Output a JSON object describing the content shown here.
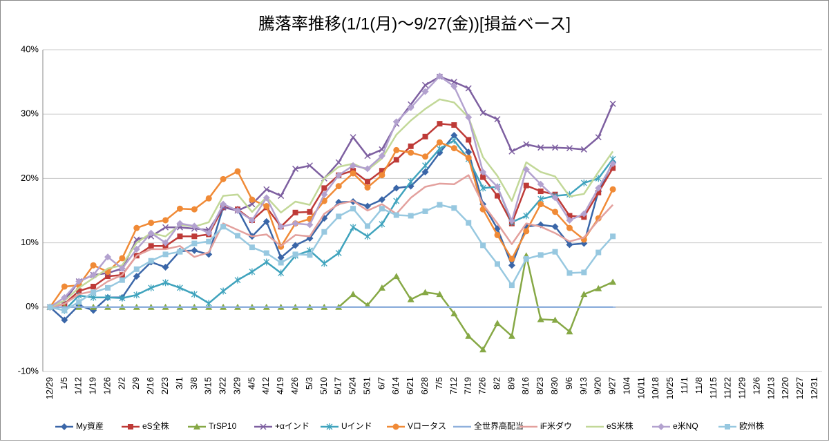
{
  "chart_data": {
    "type": "line",
    "title": "騰落率推移(1/1(月)～9/27(金))[損益ベース]",
    "categories": [
      "12/29",
      "1/5",
      "1/12",
      "1/19",
      "1/26",
      "2/2",
      "2/9",
      "2/16",
      "2/23",
      "3/1",
      "3/8",
      "3/15",
      "3/22",
      "3/29",
      "4/5",
      "4/12",
      "4/19",
      "4/26",
      "5/3",
      "5/10",
      "5/17",
      "5/24",
      "5/31",
      "6/7",
      "6/14",
      "6/21",
      "6/28",
      "7/5",
      "7/12",
      "7/19",
      "7/26",
      "8/2",
      "8/9",
      "8/16",
      "8/23",
      "8/30",
      "9/6",
      "9/13",
      "9/20",
      "9/27",
      "10/4",
      "10/11",
      "10/18",
      "10/25",
      "11/1",
      "11/8",
      "11/15",
      "11/22",
      "11/29",
      "12/6",
      "12/13",
      "12/20",
      "12/27",
      "12/31"
    ],
    "ylim": [
      -10,
      40
    ],
    "yticks": [
      {
        "value": -10,
        "label": "-10%"
      },
      {
        "value": 0,
        "label": "0%"
      },
      {
        "value": 10,
        "label": "10%"
      },
      {
        "value": 20,
        "label": "20%"
      },
      {
        "value": 30,
        "label": "30%"
      },
      {
        "value": 40,
        "label": "40%"
      }
    ],
    "grid": true,
    "legend": "bottom",
    "series": [
      {
        "name": "My資産",
        "color": "#3a66a8",
        "marker": "diamond",
        "values": [
          0,
          -2,
          0.3,
          -0.5,
          1.5,
          1.5,
          4.8,
          7,
          6.2,
          8.7,
          8.8,
          8.2,
          15.5,
          15.2,
          11,
          13.3,
          7.7,
          9.6,
          10.7,
          13.8,
          16.3,
          16.4,
          15.7,
          16.7,
          18.5,
          18.8,
          21,
          24,
          26.7,
          24.1,
          16,
          12.2,
          6.5,
          12.5,
          12.8,
          12.5,
          9.7,
          9.9,
          18,
          22.5,
          null,
          null,
          null,
          null,
          null,
          null,
          null,
          null,
          null,
          null,
          null,
          null,
          null,
          null
        ]
      },
      {
        "name": "eS全株",
        "color": "#be3a37",
        "marker": "square",
        "values": [
          0,
          0.5,
          2.5,
          3.2,
          4.8,
          5,
          8,
          9.5,
          9.5,
          11,
          11,
          11.3,
          15.5,
          15.2,
          13.5,
          15.5,
          12.5,
          14.7,
          14.8,
          18.5,
          20.5,
          21.2,
          19.5,
          21.2,
          22.9,
          25,
          26.5,
          28.5,
          28.3,
          26,
          20.2,
          17.3,
          13,
          18.9,
          18,
          17.5,
          14.2,
          14,
          17.8,
          21.6,
          null,
          null,
          null,
          null,
          null,
          null,
          null,
          null,
          null,
          null,
          null,
          null,
          null,
          null
        ]
      },
      {
        "name": "TrSP10",
        "color": "#86a845",
        "marker": "triangle",
        "values": [
          0,
          0,
          0,
          0,
          0,
          0,
          0,
          0,
          0,
          0,
          0,
          0,
          0,
          0,
          0,
          0,
          0,
          0,
          0,
          0,
          0,
          2,
          0.3,
          3,
          4.8,
          1.2,
          2.3,
          2,
          -1,
          -4.5,
          -6.6,
          -2.5,
          -4.5,
          8,
          -1.9,
          -2,
          -3.8,
          2,
          2.9,
          3.9,
          null,
          null,
          null,
          null,
          null,
          null,
          null,
          null,
          null,
          null,
          null,
          null,
          null,
          null
        ]
      },
      {
        "name": "+αインド",
        "color": "#7d5fa0",
        "marker": "x",
        "values": [
          0,
          1,
          4,
          5,
          5.3,
          6,
          10.5,
          11,
          12.4,
          12.4,
          12.2,
          12,
          15.5,
          15,
          16,
          18.3,
          17.3,
          21.5,
          22,
          20,
          22.5,
          26.4,
          23.5,
          24.5,
          28.5,
          31.5,
          34.5,
          35.8,
          35,
          34,
          30.2,
          29.2,
          24.2,
          25.3,
          24.8,
          24.8,
          24.7,
          24.5,
          26.4,
          31.6,
          null,
          null,
          null,
          null,
          null,
          null,
          null,
          null,
          null,
          null,
          null,
          null,
          null,
          null
        ]
      },
      {
        "name": "Uインド",
        "color": "#3fa3bd",
        "marker": "star",
        "values": [
          0,
          -0.5,
          1.8,
          1.5,
          1.5,
          1.4,
          1.9,
          3,
          3.8,
          3,
          2,
          0.6,
          2.5,
          4.2,
          5.5,
          7,
          5.3,
          8,
          8.8,
          6.8,
          8.4,
          12.4,
          11,
          12.9,
          16.5,
          19.5,
          22,
          24.6,
          25.9,
          23,
          18.5,
          18.7,
          13.2,
          14.2,
          16.8,
          17.3,
          17.5,
          19.3,
          20,
          23,
          null,
          null,
          null,
          null,
          null,
          null,
          null,
          null,
          null,
          null,
          null,
          null,
          null,
          null
        ]
      },
      {
        "name": "Vロータス",
        "color": "#f08a36",
        "marker": "circle",
        "values": [
          0,
          3.2,
          3.4,
          6.5,
          5.5,
          7.6,
          12.3,
          13.1,
          13.5,
          15.3,
          15.2,
          16.9,
          19.9,
          21.1,
          16.7,
          15.7,
          9.4,
          13,
          13.7,
          16.5,
          18.8,
          20.8,
          18.6,
          20.5,
          24.4,
          24,
          23.4,
          25.6,
          24.7,
          23.2,
          15.2,
          11.2,
          7.5,
          11.8,
          16,
          14.8,
          12.3,
          10.5,
          13.8,
          18.3,
          null,
          null,
          null,
          null,
          null,
          null,
          null,
          null,
          null,
          null,
          null,
          null,
          null,
          null
        ]
      },
      {
        "name": "全世界高配当",
        "color": "#8fb0dc",
        "marker": "dash",
        "values": [
          0,
          0,
          0,
          0,
          0,
          0,
          0,
          0,
          0,
          0,
          0,
          0,
          0,
          0,
          0,
          0,
          0,
          0,
          0,
          0,
          0,
          0,
          0,
          0,
          0,
          0,
          0,
          0,
          0,
          0,
          0,
          0,
          0,
          0,
          0,
          0,
          0,
          0,
          0,
          0,
          null,
          null,
          null,
          null,
          null,
          null,
          null,
          null,
          null,
          null,
          null,
          null,
          null,
          null
        ]
      },
      {
        "name": "iF米ダウ",
        "color": "#e3a09d",
        "marker": "none",
        "values": [
          0,
          0.5,
          2,
          2.5,
          4,
          5,
          8,
          9,
          9,
          9.5,
          7.8,
          8.5,
          13,
          12,
          11,
          11.3,
          9.5,
          11.2,
          11,
          14.5,
          16,
          16.5,
          15,
          16,
          14.5,
          17,
          18.7,
          19.2,
          19.1,
          20.5,
          16,
          13,
          9.8,
          13,
          12.5,
          11.5,
          10.2,
          10.8,
          13.5,
          15.9,
          null,
          null,
          null,
          null,
          null,
          null,
          null,
          null,
          null,
          null,
          null,
          null,
          null,
          null
        ]
      },
      {
        "name": "eS米株",
        "color": "#c2d898",
        "marker": "none",
        "values": [
          0,
          1,
          3,
          4.5,
          6,
          6.5,
          10,
          11.5,
          11,
          12.8,
          12.5,
          13.2,
          17.3,
          17.5,
          14.8,
          17.1,
          14.7,
          16.4,
          15.9,
          20,
          21.8,
          22.3,
          21.3,
          23.1,
          26.8,
          29,
          30.8,
          32.3,
          31.8,
          29.5,
          23.3,
          20.4,
          16.5,
          22.5,
          21,
          20.3,
          17.2,
          17.6,
          21,
          24.2,
          null,
          null,
          null,
          null,
          null,
          null,
          null,
          null,
          null,
          null,
          null,
          null,
          null,
          null
        ]
      },
      {
        "name": "e米NQ",
        "color": "#b3a2cf",
        "marker": "diamond",
        "values": [
          0,
          1.5,
          4,
          5,
          7.8,
          6,
          9,
          11.5,
          10,
          13,
          12.6,
          11.5,
          16,
          15,
          13.5,
          17,
          12.5,
          13,
          12.8,
          17.5,
          20.5,
          22,
          21.5,
          23.5,
          28.8,
          31,
          33.5,
          35.9,
          34.3,
          29.5,
          21,
          18.7,
          13.4,
          21.4,
          19.1,
          17,
          13.5,
          14.5,
          18.5,
          22.3,
          null,
          null,
          null,
          null,
          null,
          null,
          null,
          null,
          null,
          null,
          null,
          null,
          null,
          null
        ]
      },
      {
        "name": "欧州株",
        "color": "#97c8e0",
        "marker": "square",
        "values": [
          0,
          -0.5,
          0.8,
          2.3,
          3,
          4.2,
          5.9,
          7.2,
          8.2,
          8.6,
          9.9,
          10.2,
          12.5,
          11.1,
          9.3,
          8.4,
          6.9,
          8.2,
          8.1,
          11.7,
          14.1,
          15.3,
          12.6,
          15.3,
          14.3,
          14.2,
          14.9,
          15.9,
          15.4,
          13.1,
          9.6,
          6.7,
          3.4,
          7.5,
          8.1,
          8.6,
          5.3,
          5.4,
          8.5,
          11,
          null,
          null,
          null,
          null,
          null,
          null,
          null,
          null,
          null,
          null,
          null,
          null,
          null,
          null
        ]
      }
    ]
  }
}
